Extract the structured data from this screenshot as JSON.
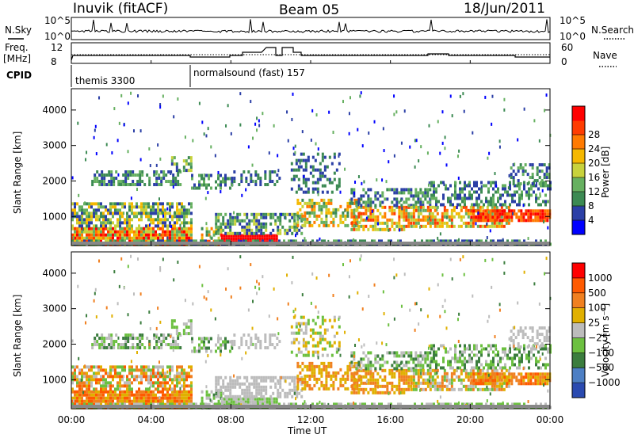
{
  "header": {
    "site": "Inuvik (fitACF)",
    "beam": "Beam 05",
    "date": "18/Jun/2011"
  },
  "status_panel": {
    "nsky_label": "N.Sky",
    "nsearch_label": "N.Search",
    "freq_label": "Freq.",
    "freq_unit": "[MHz]",
    "nave_label": "Nave",
    "cpid_label": "CPID",
    "left_top_tick": "10^5",
    "left_bottom_tick": "10^0",
    "right_top_tick": "10^5",
    "right_bottom_tick": "10^0",
    "freq_ticks": [
      "12",
      "8"
    ],
    "nave_ticks": [
      "60",
      "0"
    ],
    "cpid_segments": [
      {
        "label": "themis 3300",
        "start_hour": 0.0
      },
      {
        "label": "normalsound (fast) 157",
        "start_hour": 6.1
      }
    ]
  },
  "colors": {
    "power_scale": [
      "#0000ff",
      "#2b3fa6",
      "#3c8a53",
      "#66b060",
      "#c8d23c",
      "#f5b800",
      "#ff7a00",
      "#ff3c00",
      "#ff0000"
    ],
    "velocity_scale": [
      "#2a4ab0",
      "#4d7fc4",
      "#3b7d3e",
      "#6cc040",
      "#bcbcbc",
      "#e0b000",
      "#f08020",
      "#ff5a00",
      "#ff0000"
    ]
  },
  "chart_data": [
    {
      "type": "heatmap",
      "name": "power",
      "xlabel": "",
      "ylabel": "Slant Range [km]",
      "x_range_hours": [
        0,
        24
      ],
      "ylim": [
        180,
        4600
      ],
      "y_ticks": [
        1000,
        2000,
        3000,
        4000
      ],
      "colorbar": {
        "label": "Power [dB]",
        "range": [
          0,
          32
        ],
        "ticks": [
          "4",
          "8",
          "12",
          "16",
          "20",
          "24",
          "28"
        ]
      }
    },
    {
      "type": "heatmap",
      "name": "velocity",
      "xlabel": "Time UT",
      "ylabel": "Slant Range [km]",
      "x_range_hours": [
        0,
        24
      ],
      "ylim": [
        180,
        4600
      ],
      "x_ticks": [
        "00:00",
        "04:00",
        "08:00",
        "12:00",
        "16:00",
        "20:00",
        "00:00"
      ],
      "y_ticks": [
        1000,
        2000,
        3000,
        4000
      ],
      "colorbar": {
        "label": "Velocity [m s⁻¹]",
        "ticks": [
          "1000",
          "500",
          "100",
          "25",
          "−25",
          "−100",
          "−500",
          "−1000"
        ]
      }
    }
  ]
}
